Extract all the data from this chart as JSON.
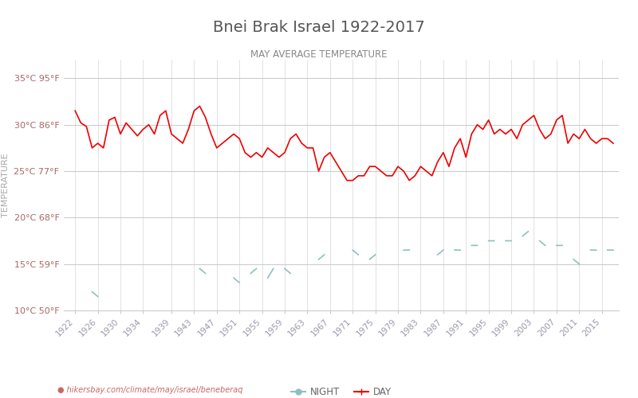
{
  "title": "Bnei Brak Israel 1922-2017",
  "subtitle": "MAY AVERAGE TEMPERATURE",
  "ylabel": "TEMPERATURE",
  "xlabel_url": "hikersbay.com/climate/may/israel/beneberaq",
  "ylim": [
    10,
    37
  ],
  "yticks_c": [
    10,
    15,
    20,
    25,
    30,
    35
  ],
  "ytick_labels": [
    "10°C 50°F",
    "15°C 59°F",
    "20°C 68°F",
    "25°C 77°F",
    "30°C 86°F",
    "35°C 95°F"
  ],
  "years": [
    1922,
    1923,
    1924,
    1925,
    1926,
    1927,
    1928,
    1929,
    1930,
    1931,
    1932,
    1933,
    1934,
    1935,
    1936,
    1937,
    1938,
    1939,
    1940,
    1941,
    1942,
    1943,
    1944,
    1945,
    1946,
    1947,
    1948,
    1949,
    1950,
    1951,
    1952,
    1953,
    1954,
    1955,
    1956,
    1957,
    1958,
    1959,
    1960,
    1961,
    1962,
    1963,
    1964,
    1965,
    1966,
    1967,
    1968,
    1969,
    1970,
    1971,
    1972,
    1973,
    1974,
    1975,
    1976,
    1977,
    1978,
    1979,
    1980,
    1981,
    1982,
    1983,
    1984,
    1985,
    1986,
    1987,
    1988,
    1989,
    1990,
    1991,
    1992,
    1993,
    1994,
    1995,
    1996,
    1997,
    1998,
    1999,
    2000,
    2001,
    2002,
    2003,
    2004,
    2005,
    2006,
    2007,
    2008,
    2009,
    2010,
    2011,
    2012,
    2013,
    2014,
    2015,
    2016,
    2017
  ],
  "day_temps": [
    31.5,
    30.2,
    29.8,
    27.5,
    28.0,
    27.5,
    30.5,
    30.8,
    29.0,
    30.2,
    29.5,
    28.8,
    29.5,
    30.0,
    29.0,
    31.0,
    31.5,
    29.0,
    28.5,
    28.0,
    29.5,
    31.5,
    32.0,
    30.8,
    29.0,
    27.5,
    28.0,
    28.5,
    29.0,
    28.5,
    27.0,
    26.5,
    27.0,
    26.5,
    27.5,
    27.0,
    26.5,
    27.0,
    28.5,
    29.0,
    28.0,
    27.5,
    27.5,
    25.0,
    26.5,
    27.0,
    26.0,
    25.0,
    24.0,
    24.0,
    24.5,
    24.5,
    25.5,
    25.5,
    25.0,
    24.5,
    24.5,
    25.5,
    25.0,
    24.0,
    24.5,
    25.5,
    25.0,
    24.5,
    26.0,
    27.0,
    25.5,
    27.5,
    28.5,
    26.5,
    29.0,
    30.0,
    29.5,
    30.5,
    29.0,
    29.5,
    29.0,
    29.5,
    28.5,
    30.0,
    30.5,
    31.0,
    29.5,
    28.5,
    29.0,
    30.5,
    31.0,
    28.0,
    29.0,
    28.5,
    29.5,
    28.5,
    28.0,
    28.5,
    28.5,
    28.0
  ],
  "night_temps": [
    null,
    null,
    null,
    12.0,
    11.5,
    null,
    null,
    null,
    null,
    null,
    null,
    null,
    null,
    null,
    null,
    null,
    null,
    null,
    null,
    null,
    null,
    null,
    14.5,
    14.0,
    null,
    13.0,
    null,
    null,
    13.5,
    13.0,
    null,
    14.0,
    14.5,
    null,
    13.5,
    14.5,
    null,
    14.5,
    14.0,
    null,
    null,
    null,
    null,
    15.5,
    16.0,
    null,
    null,
    null,
    null,
    16.5,
    16.0,
    null,
    15.5,
    16.0,
    null,
    null,
    null,
    null,
    16.5,
    16.5,
    null,
    16.0,
    null,
    null,
    16.0,
    16.5,
    null,
    16.5,
    16.5,
    null,
    17.0,
    17.0,
    null,
    17.5,
    17.5,
    null,
    17.5,
    17.5,
    null,
    18.0,
    18.5,
    null,
    17.5,
    17.0,
    null,
    17.0,
    17.0,
    null,
    15.5,
    15.0,
    null,
    16.5,
    16.5,
    null,
    16.5,
    16.5
  ],
  "day_color": "#ee0000",
  "night_color": "#8fbfbf",
  "background_color": "#ffffff",
  "grid_color": "#cccccc",
  "title_color": "#555555",
  "subtitle_color": "#888888",
  "ylabel_color": "#aaaaaa",
  "tick_label_color": "#aa6666",
  "xtick_label_color": "#9999aa",
  "legend_night_color": "#8fbfbf",
  "legend_day_color": "#ee0000",
  "url_color": "#cc6666",
  "xtick_years": [
    1922,
    1926,
    1930,
    1934,
    1939,
    1943,
    1947,
    1951,
    1955,
    1959,
    1963,
    1967,
    1971,
    1975,
    1979,
    1983,
    1987,
    1991,
    1995,
    1999,
    2003,
    2007,
    2011,
    2015
  ]
}
